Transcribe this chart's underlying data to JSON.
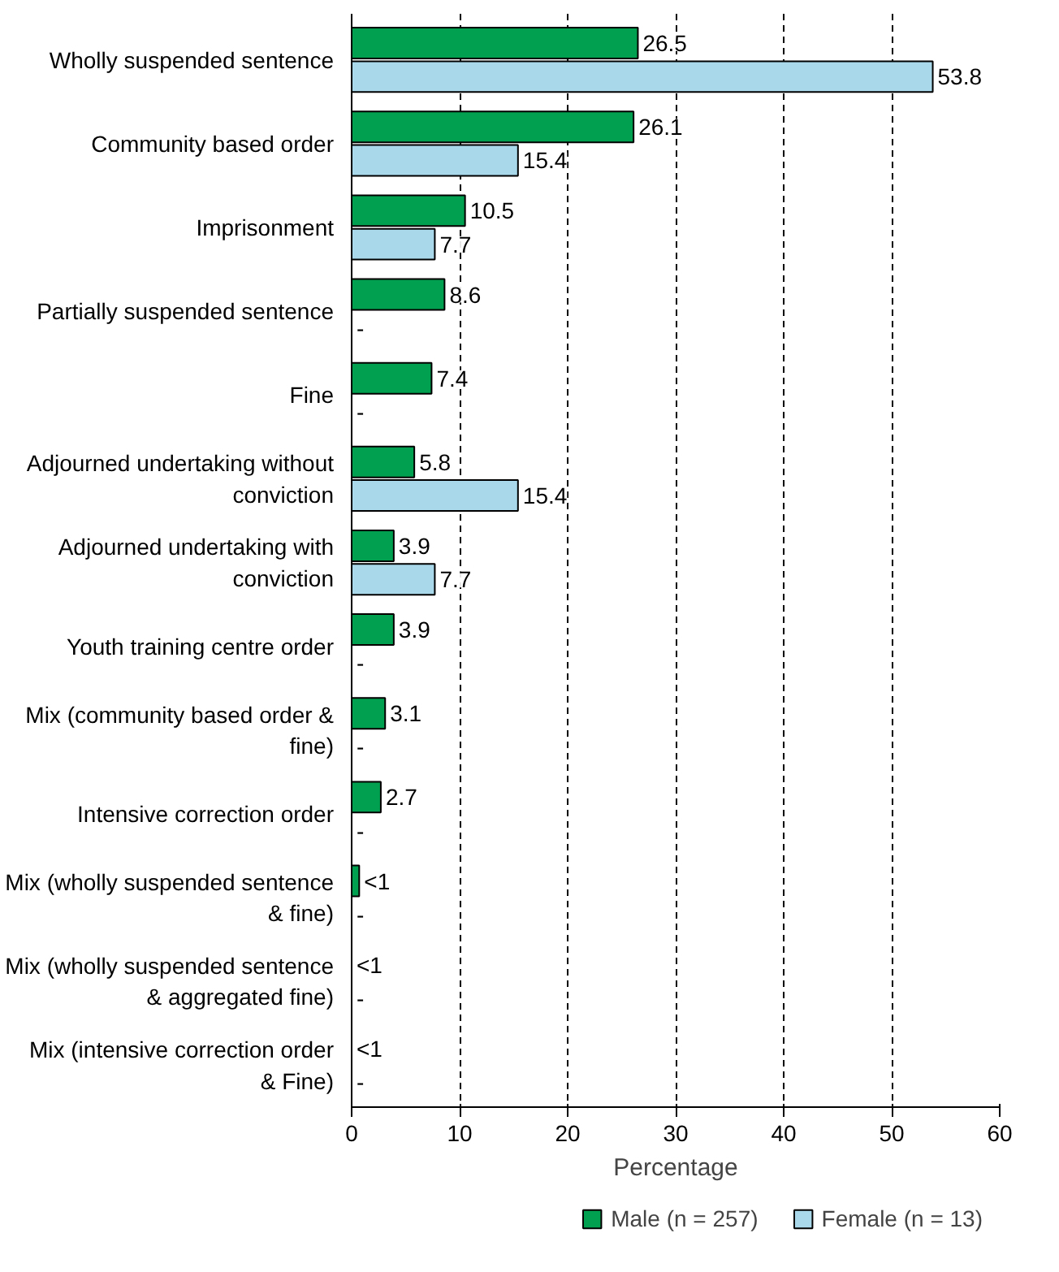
{
  "chart_data": {
    "type": "bar",
    "orientation": "horizontal",
    "xlabel": "Percentage",
    "categories": [
      "Wholly suspended sentence",
      "Community based order",
      "Imprisonment",
      "Partially suspended sentence",
      "Fine",
      "Adjourned undertaking without conviction",
      "Adjourned undertaking with conviction",
      "Youth training centre order",
      "Mix (community based order & fine)",
      "Intensive correction order",
      "Mix (wholly suspended sentence & fine)",
      "Mix (wholly suspended sentence & aggregated fine)",
      "Mix (intensive correction order & Fine)"
    ],
    "series": [
      {
        "name": "Male (n = 257)",
        "color": "#00a050",
        "values": [
          26.5,
          26.1,
          10.5,
          8.6,
          7.4,
          5.8,
          3.9,
          3.9,
          3.1,
          2.7,
          0.7,
          null,
          null
        ],
        "value_labels": [
          "26.5",
          "26.1",
          "10.5",
          "8.6",
          "7.4",
          "5.8",
          "3.9",
          "3.9",
          "3.1",
          "2.7",
          "<1",
          "<1",
          "<1"
        ]
      },
      {
        "name": "Female (n = 13)",
        "color": "#a8d8ea",
        "values": [
          53.8,
          15.4,
          7.7,
          null,
          null,
          15.4,
          7.7,
          null,
          null,
          null,
          null,
          null,
          null
        ],
        "value_labels": [
          "53.8",
          "15.4",
          "7.7",
          "-",
          "-",
          "15.4",
          "7.7",
          "-",
          "-",
          "-",
          "-",
          "-",
          "-"
        ]
      }
    ],
    "xlim": [
      0,
      60
    ],
    "xticks": [
      0,
      10,
      20,
      30,
      40,
      50,
      60
    ],
    "grid": "x",
    "legend": "bottom"
  }
}
